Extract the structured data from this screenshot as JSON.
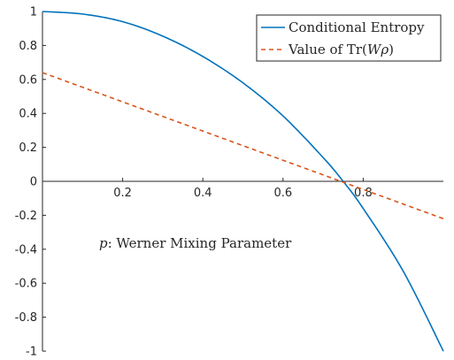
{
  "chart_data": {
    "type": "line",
    "xlim": [
      0,
      1
    ],
    "ylim": [
      -1,
      1
    ],
    "x_ticks": [
      0.2,
      0.4,
      0.6,
      0.8
    ],
    "x_tick_labels": [
      "0.2",
      "0.4",
      "0.6",
      "0.8"
    ],
    "y_ticks": [
      -1,
      -0.8,
      -0.6,
      -0.4,
      -0.2,
      0,
      0.2,
      0.4,
      0.6,
      0.8,
      1
    ],
    "y_tick_labels": [
      "-1",
      "-0.8",
      "-0.6",
      "-0.4",
      "-0.2",
      "0",
      "0.2",
      "0.4",
      "0.6",
      "0.8",
      "1"
    ],
    "grid": false,
    "legend_position": "top-right",
    "annotation": {
      "var": "p",
      "text": ": Werner Mixing Parameter"
    },
    "series": [
      {
        "name": "Conditional Entropy",
        "color": "#0072bd",
        "style": "solid",
        "x": [
          0,
          0.1,
          0.2,
          0.3,
          0.4,
          0.5,
          0.6,
          0.7,
          0.75,
          0.8,
          0.9,
          1.0
        ],
        "y": [
          1.0,
          0.985,
          0.94,
          0.855,
          0.735,
          0.58,
          0.385,
          0.14,
          0.0,
          -0.16,
          -0.53,
          -1.0
        ]
      },
      {
        "name": "Value of Tr(Wρ)",
        "name_prefix": "Value of Tr(",
        "name_w": "W",
        "name_rho": "ρ",
        "name_suffix": ")",
        "color": "#d95319",
        "style": "dashed",
        "x": [
          0,
          1
        ],
        "y": [
          0.64,
          -0.22
        ]
      }
    ]
  }
}
